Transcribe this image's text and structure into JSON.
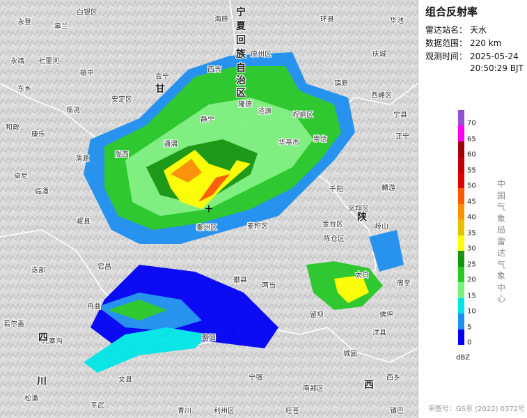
{
  "map": {
    "labels": [
      "白银区",
      "海原",
      "环县",
      "华池",
      "永登",
      "皋兰",
      "永靖",
      "七里河",
      "榆中",
      "会宁",
      "西吉",
      "原州区",
      "镇原",
      "庆城",
      "西峰区",
      "东乡",
      "临洮",
      "安定区",
      "隆德",
      "泾源",
      "崆峒区",
      "宁县",
      "和政",
      "康乐",
      "静宁",
      "华亭市",
      "崇信",
      "正宁",
      "通渭",
      "陇西",
      "渭源",
      "卓尼",
      "临潭",
      "千阳",
      "麟游",
      "岷县",
      "凤翔区",
      "金台区",
      "陈仓区",
      "秦州区",
      "麦积区",
      "岐山",
      "宕昌",
      "徽县",
      "两当",
      "太白",
      "周至",
      "迭部",
      "舟曲",
      "若尔盖",
      "留坝",
      "佛坪",
      "洋县",
      "九寨沟",
      "文县",
      "宁强",
      "南郑区",
      "城固",
      "西乡",
      "青川",
      "利州区",
      "旺苍",
      "平武",
      "松潘",
      "镇巴",
      "略阳"
    ],
    "regions": [
      "甘",
      "陕",
      "四",
      "川",
      "西",
      "宁",
      "夏",
      "回",
      "族",
      "自",
      "治",
      "区"
    ]
  },
  "panel": {
    "title": "组合反射率",
    "info": [
      {
        "label": "雷达站名：",
        "value": "天水"
      },
      {
        "label": "数据范围：",
        "value": "220 km"
      },
      {
        "label": "观测时间：",
        "value": "2025-05-24"
      },
      {
        "label": "",
        "value": "20:50:29 BJT"
      }
    ],
    "legend": {
      "ticks": [
        0,
        5,
        10,
        15,
        20,
        25,
        30,
        35,
        40,
        45,
        50,
        55,
        60,
        65,
        70
      ],
      "colors": [
        "#0000f6",
        "#1e90f0",
        "#00e6e6",
        "#7cf07c",
        "#28c828",
        "#14960f",
        "#ffff00",
        "#e7c000",
        "#ff9000",
        "#ff5a00",
        "#e00000",
        "#c00000",
        "#a00000",
        "#ff00f0",
        "#9650d0"
      ],
      "unit": "dBZ"
    },
    "side_text": "中国气象局雷达气象中心",
    "footer": "审图号：GS京 (2022) 0372号"
  }
}
